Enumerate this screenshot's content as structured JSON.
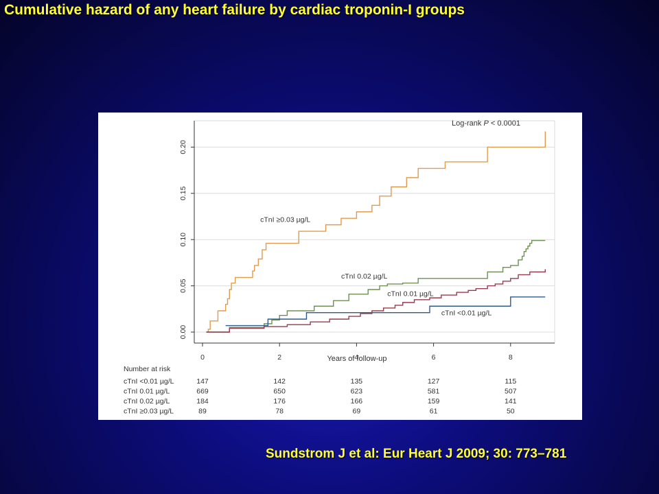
{
  "slide": {
    "title": "Cumulative hazard of any heart failure by cardiac troponin-I groups",
    "citation": "Sundstrom J et al: Eur Heart J 2009; 30: 773–781"
  },
  "chart_data": {
    "type": "line",
    "step": true,
    "xlabel": "Years of follow-up",
    "ylabel": "",
    "xlim": [
      0,
      9
    ],
    "ylim": [
      0,
      0.22
    ],
    "xticks": [
      0,
      2,
      4,
      6,
      8
    ],
    "yticks": [
      0.0,
      0.05,
      0.1,
      0.15,
      0.2
    ],
    "ytick_labels": [
      "0.00",
      "0.05",
      "0.10",
      "0.15",
      "0.20"
    ],
    "grid": true,
    "annotation": {
      "log_rank_prefix": "Log-rank ",
      "p": "P",
      "log_rank_suffix": " < 0.0001"
    },
    "colors": {
      "grid": "#dcdcdc",
      "axis": "#333333",
      "text": "#333333"
    },
    "series": [
      {
        "name": "cTnI ≥0.03 µg/L",
        "color": "#e39a4a",
        "x": [
          0.1,
          0.15,
          0.2,
          0.4,
          0.6,
          0.65,
          0.7,
          0.75,
          0.85,
          1.3,
          1.35,
          1.45,
          1.55,
          1.65,
          2.5,
          3.2,
          3.6,
          4.0,
          4.4,
          4.6,
          4.9,
          5.3,
          5.6,
          6.3,
          7.4,
          8.9
        ],
        "y": [
          0.0,
          0.003,
          0.012,
          0.023,
          0.03,
          0.036,
          0.046,
          0.053,
          0.059,
          0.066,
          0.072,
          0.079,
          0.089,
          0.096,
          0.109,
          0.116,
          0.123,
          0.13,
          0.137,
          0.147,
          0.157,
          0.167,
          0.177,
          0.184,
          0.2,
          0.217
        ]
      },
      {
        "name": "cTnI 0.02 µg/L",
        "color": "#6e8f55",
        "x": [
          0.1,
          0.7,
          1.6,
          1.8,
          2.0,
          2.2,
          2.9,
          3.4,
          3.8,
          4.3,
          4.6,
          4.8,
          5.2,
          5.6,
          7.4,
          7.8,
          8.0,
          8.2,
          8.3,
          8.35,
          8.4,
          8.45,
          8.5,
          8.55,
          8.9
        ],
        "y": [
          0.0,
          0.005,
          0.009,
          0.013,
          0.018,
          0.023,
          0.028,
          0.034,
          0.041,
          0.046,
          0.05,
          0.052,
          0.053,
          0.058,
          0.065,
          0.07,
          0.072,
          0.078,
          0.082,
          0.087,
          0.09,
          0.093,
          0.096,
          0.099,
          0.099
        ]
      },
      {
        "name": "cTnI 0.01 µg/L",
        "color": "#9a3a4e",
        "x": [
          0.1,
          0.7,
          1.6,
          2.2,
          2.8,
          3.3,
          3.8,
          4.1,
          4.4,
          4.7,
          5.0,
          5.2,
          5.5,
          5.9,
          6.2,
          6.6,
          6.9,
          7.1,
          7.4,
          7.6,
          7.8,
          8.0,
          8.2,
          8.5,
          8.9
        ],
        "y": [
          0.0,
          0.004,
          0.006,
          0.008,
          0.011,
          0.014,
          0.017,
          0.02,
          0.023,
          0.026,
          0.029,
          0.032,
          0.035,
          0.037,
          0.04,
          0.043,
          0.045,
          0.047,
          0.05,
          0.052,
          0.055,
          0.058,
          0.062,
          0.065,
          0.068
        ]
      },
      {
        "name": "cTnI <0.01 µg/L",
        "color": "#2c5a8a",
        "x": [
          0.6,
          1.7,
          2.7,
          5.9,
          8.0,
          8.9
        ],
        "y": [
          0.007,
          0.014,
          0.021,
          0.028,
          0.038,
          0.038
        ]
      }
    ],
    "series_labels": [
      {
        "text": "cTnI ≥0.03 µg/L",
        "x": 1.5,
        "y": 0.119
      },
      {
        "text": "cTnI 0.02 µg/L",
        "x": 3.6,
        "y": 0.058
      },
      {
        "text": "cTnI 0.01 µg/L",
        "x": 4.8,
        "y": 0.039
      },
      {
        "text": "cTnI <0.01 µg/L",
        "x": 6.2,
        "y": 0.018
      }
    ],
    "risk_table": {
      "title": "Number at risk",
      "times": [
        0,
        2,
        4,
        6,
        8
      ],
      "rows": [
        {
          "label": "cTnI <0.01 µg/L",
          "values": [
            "147",
            "142",
            "135",
            "127",
            "115"
          ]
        },
        {
          "label": "cTnI  0.01 µg/L",
          "values": [
            "669",
            "650",
            "623",
            "581",
            "507"
          ]
        },
        {
          "label": "cTnI  0.02 µg/L",
          "values": [
            "184",
            "176",
            "166",
            "159",
            "141"
          ]
        },
        {
          "label": "cTnI ≥0.03 µg/L",
          "values": [
            "89",
            "78",
            "69",
            "61",
            "50"
          ]
        }
      ]
    }
  }
}
